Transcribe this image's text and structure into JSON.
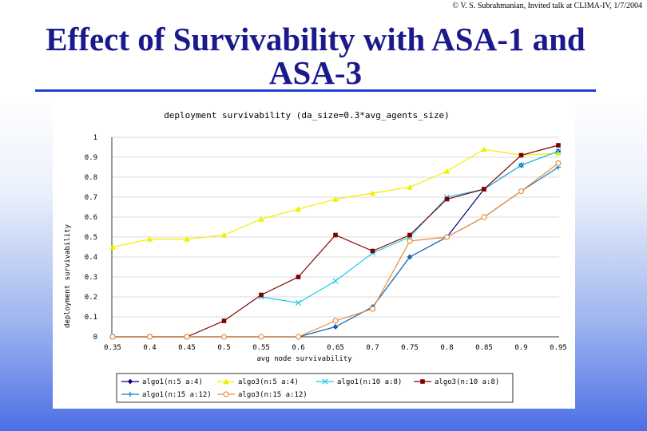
{
  "header": {
    "copyright": "© V. S. Subrahmanian, Invited talk at CLIMA-IV, 1/7/2004",
    "title_line1": "Effect of Survivability with ASA-1 and",
    "title_line2": "ASA-3"
  },
  "colors": {
    "title": "#1a1a8c",
    "rule": "#1f3fd1"
  },
  "chart_data": {
    "type": "line",
    "title": "deployment survivability (da_size=0.3*avg_agents_size)",
    "xlabel": "avg node survivability",
    "ylabel": "deployment survivability",
    "x": [
      0.35,
      0.4,
      0.45,
      0.5,
      0.55,
      0.6,
      0.65,
      0.7,
      0.75,
      0.8,
      0.85,
      0.9,
      0.95
    ],
    "x_tick_labels": [
      "0.35",
      "0.4",
      "0.45",
      "0.5",
      "0.55",
      "0.6",
      "0.65",
      "0.7",
      "0.75",
      "0.8",
      "0.85",
      "0.9",
      "0.95"
    ],
    "xlim": [
      0.35,
      0.95
    ],
    "ylim": [
      0,
      1
    ],
    "y_ticks": [
      0,
      0.1,
      0.2,
      0.3,
      0.4,
      0.5,
      0.6,
      0.7,
      0.8,
      0.9,
      1
    ],
    "y_tick_labels": [
      "0",
      "0.1",
      "0.2",
      "0.3",
      "0.4",
      "0.5",
      "0.6",
      "0.7",
      "0.8",
      "0.9",
      "1"
    ],
    "grid": "horizontal",
    "legend": "bottom",
    "series": [
      {
        "name": "algo1(n:5 a:4)",
        "color": "#000080",
        "marker": "diamond",
        "values": [
          0,
          0,
          0,
          0,
          0,
          0,
          0.05,
          0.15,
          0.4,
          0.5,
          0.74,
          0.86,
          0.93
        ]
      },
      {
        "name": "algo3(n:5 a:4)",
        "color": "#f0f000",
        "marker": "triangle",
        "values": [
          0.45,
          0.49,
          0.49,
          0.51,
          0.59,
          0.64,
          0.69,
          0.72,
          0.75,
          0.83,
          0.94,
          0.91,
          0.92
        ]
      },
      {
        "name": "algo1(n:10 a:8)",
        "color": "#22c8e8",
        "marker": "x",
        "values": [
          null,
          null,
          null,
          null,
          0.2,
          0.17,
          0.28,
          0.42,
          0.5,
          0.7,
          0.74,
          0.86,
          0.93
        ]
      },
      {
        "name": "algo3(n:10 a:8)",
        "color": "#800000",
        "marker": "square",
        "values": [
          0,
          0,
          0,
          0.08,
          0.21,
          0.3,
          0.51,
          0.43,
          0.51,
          0.69,
          0.74,
          0.91,
          0.96
        ]
      },
      {
        "name": "algo1(n:15 a:12)",
        "color": "#1a7fc4",
        "marker": "plus",
        "values": [
          0,
          0,
          0,
          0,
          0,
          0,
          0.05,
          0.15,
          0.4,
          0.5,
          0.6,
          0.73,
          0.85
        ]
      },
      {
        "name": "algo3(n:15 a:12)",
        "color": "#ec8b3a",
        "marker": "circle",
        "values": [
          0,
          0,
          0,
          0,
          0,
          0,
          0.08,
          0.14,
          0.48,
          0.5,
          0.6,
          0.73,
          0.87
        ]
      }
    ]
  }
}
